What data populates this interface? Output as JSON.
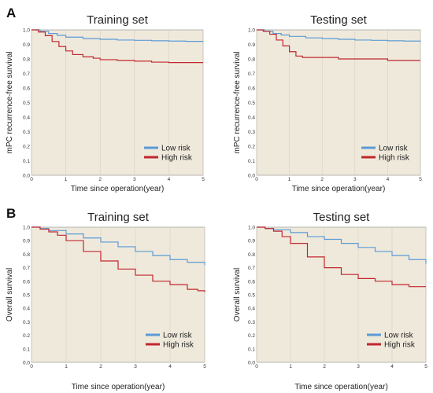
{
  "panels": [
    {
      "letter": "A"
    },
    {
      "letter": "B"
    }
  ],
  "colors": {
    "low_risk": "#5b9bd5",
    "high_risk": "#c0282d",
    "plot_background": "#efe9dc"
  },
  "chart_data": [
    {
      "panel": "A",
      "type": "line",
      "title": "Training set",
      "xlabel": "Time since operation(year)",
      "ylabel": "mPC recurrence-free survival",
      "xlim": [
        0,
        5
      ],
      "ylim": [
        0,
        1
      ],
      "xticks": [
        "0",
        "1",
        "2",
        "3",
        "4",
        "5"
      ],
      "yticks": [
        "0.0",
        "0.1",
        "0.2",
        "0.3",
        "0.4",
        "0.5",
        "0.6",
        "0.7",
        "0.8",
        "0.9",
        "1.0"
      ],
      "grid": true,
      "legend_position": "bottom-right",
      "series": [
        {
          "name": "Low risk",
          "color": "#5b9bd5",
          "x": [
            0,
            0.25,
            0.5,
            0.75,
            1.0,
            1.5,
            2.0,
            2.5,
            3.0,
            3.5,
            4.0,
            4.5,
            5.0
          ],
          "y": [
            1.0,
            0.99,
            0.975,
            0.962,
            0.95,
            0.94,
            0.935,
            0.93,
            0.928,
            0.925,
            0.923,
            0.921,
            0.92
          ]
        },
        {
          "name": "High risk",
          "color": "#c0282d",
          "x": [
            0,
            0.2,
            0.4,
            0.6,
            0.8,
            1.0,
            1.2,
            1.5,
            1.8,
            2.0,
            2.5,
            3.0,
            3.5,
            4.0,
            4.5,
            5.0
          ],
          "y": [
            1.0,
            0.985,
            0.96,
            0.92,
            0.885,
            0.855,
            0.83,
            0.815,
            0.805,
            0.795,
            0.79,
            0.785,
            0.778,
            0.775,
            0.775,
            0.775
          ]
        }
      ]
    },
    {
      "panel": "A",
      "type": "line",
      "title": "Testing set",
      "xlabel": "Time since operation(year)",
      "ylabel": "mPC recurrence-free survival",
      "xlim": [
        0,
        5
      ],
      "ylim": [
        0,
        1
      ],
      "xticks": [
        "0",
        "1",
        "2",
        "3",
        "4",
        "5"
      ],
      "yticks": [
        "0.0",
        "0.1",
        "0.2",
        "0.3",
        "0.4",
        "0.5",
        "0.6",
        "0.7",
        "0.8",
        "0.9",
        "1.0"
      ],
      "grid": true,
      "legend_position": "bottom-right",
      "series": [
        {
          "name": "Low risk",
          "color": "#5b9bd5",
          "x": [
            0,
            0.25,
            0.5,
            0.75,
            1.0,
            1.5,
            2.0,
            2.5,
            3.0,
            3.5,
            4.0,
            4.5,
            5.0
          ],
          "y": [
            1.0,
            0.99,
            0.975,
            0.965,
            0.955,
            0.945,
            0.94,
            0.935,
            0.93,
            0.928,
            0.925,
            0.923,
            0.92
          ]
        },
        {
          "name": "High risk",
          "color": "#c0282d",
          "x": [
            0,
            0.2,
            0.4,
            0.6,
            0.8,
            1.0,
            1.2,
            1.4,
            1.8,
            2.2,
            2.5,
            3.0,
            3.5,
            4.0,
            4.5,
            5.0
          ],
          "y": [
            1.0,
            0.99,
            0.97,
            0.93,
            0.89,
            0.85,
            0.82,
            0.81,
            0.81,
            0.81,
            0.8,
            0.8,
            0.8,
            0.79,
            0.79,
            0.79
          ]
        }
      ]
    },
    {
      "panel": "B",
      "type": "line",
      "title": "Training set",
      "xlabel": "Time since operation(year)",
      "ylabel": "Overall survival",
      "xlim": [
        0,
        5
      ],
      "ylim": [
        0,
        1
      ],
      "xticks": [
        "0",
        "1",
        "2",
        "3",
        "4",
        "5"
      ],
      "yticks": [
        "0.0",
        "0.1",
        "0.2",
        "0.3",
        "0.4",
        "0.5",
        "0.6",
        "0.7",
        "0.8",
        "0.9",
        "1.0"
      ],
      "grid": true,
      "legend_position": "bottom-right",
      "series": [
        {
          "name": "Low risk",
          "color": "#5b9bd5",
          "x": [
            0,
            0.25,
            0.5,
            1.0,
            1.5,
            2.0,
            2.5,
            3.0,
            3.5,
            4.0,
            4.5,
            5.0
          ],
          "y": [
            1.0,
            0.99,
            0.975,
            0.95,
            0.92,
            0.89,
            0.855,
            0.82,
            0.79,
            0.76,
            0.74,
            0.72
          ]
        },
        {
          "name": "High risk",
          "color": "#c0282d",
          "x": [
            0,
            0.25,
            0.5,
            0.75,
            1.0,
            1.5,
            2.0,
            2.5,
            3.0,
            3.5,
            4.0,
            4.5,
            4.8,
            5.0
          ],
          "y": [
            1.0,
            0.985,
            0.965,
            0.94,
            0.9,
            0.82,
            0.75,
            0.69,
            0.645,
            0.6,
            0.575,
            0.54,
            0.53,
            0.52
          ]
        }
      ]
    },
    {
      "panel": "B",
      "type": "line",
      "title": "Testing set",
      "xlabel": "Time since operation(year)",
      "ylabel": "Overall survival",
      "xlim": [
        0,
        5
      ],
      "ylim": [
        0,
        1
      ],
      "xticks": [
        "0",
        "1",
        "2",
        "3",
        "4",
        "5"
      ],
      "yticks": [
        "0.0",
        "0.1",
        "0.2",
        "0.3",
        "0.4",
        "0.5",
        "0.6",
        "0.7",
        "0.8",
        "0.9",
        "1.0"
      ],
      "grid": true,
      "legend_position": "bottom-right",
      "series": [
        {
          "name": "Low risk",
          "color": "#5b9bd5",
          "x": [
            0,
            0.25,
            0.5,
            1.0,
            1.5,
            2.0,
            2.5,
            3.0,
            3.5,
            4.0,
            4.5,
            5.0
          ],
          "y": [
            1.0,
            0.99,
            0.98,
            0.96,
            0.93,
            0.91,
            0.88,
            0.85,
            0.82,
            0.79,
            0.76,
            0.73
          ]
        },
        {
          "name": "High risk",
          "color": "#c0282d",
          "x": [
            0,
            0.25,
            0.5,
            0.75,
            1.0,
            1.5,
            2.0,
            2.5,
            3.0,
            3.5,
            4.0,
            4.5,
            5.0
          ],
          "y": [
            1.0,
            0.99,
            0.97,
            0.93,
            0.88,
            0.78,
            0.7,
            0.65,
            0.62,
            0.6,
            0.575,
            0.56,
            0.56
          ]
        }
      ]
    }
  ]
}
